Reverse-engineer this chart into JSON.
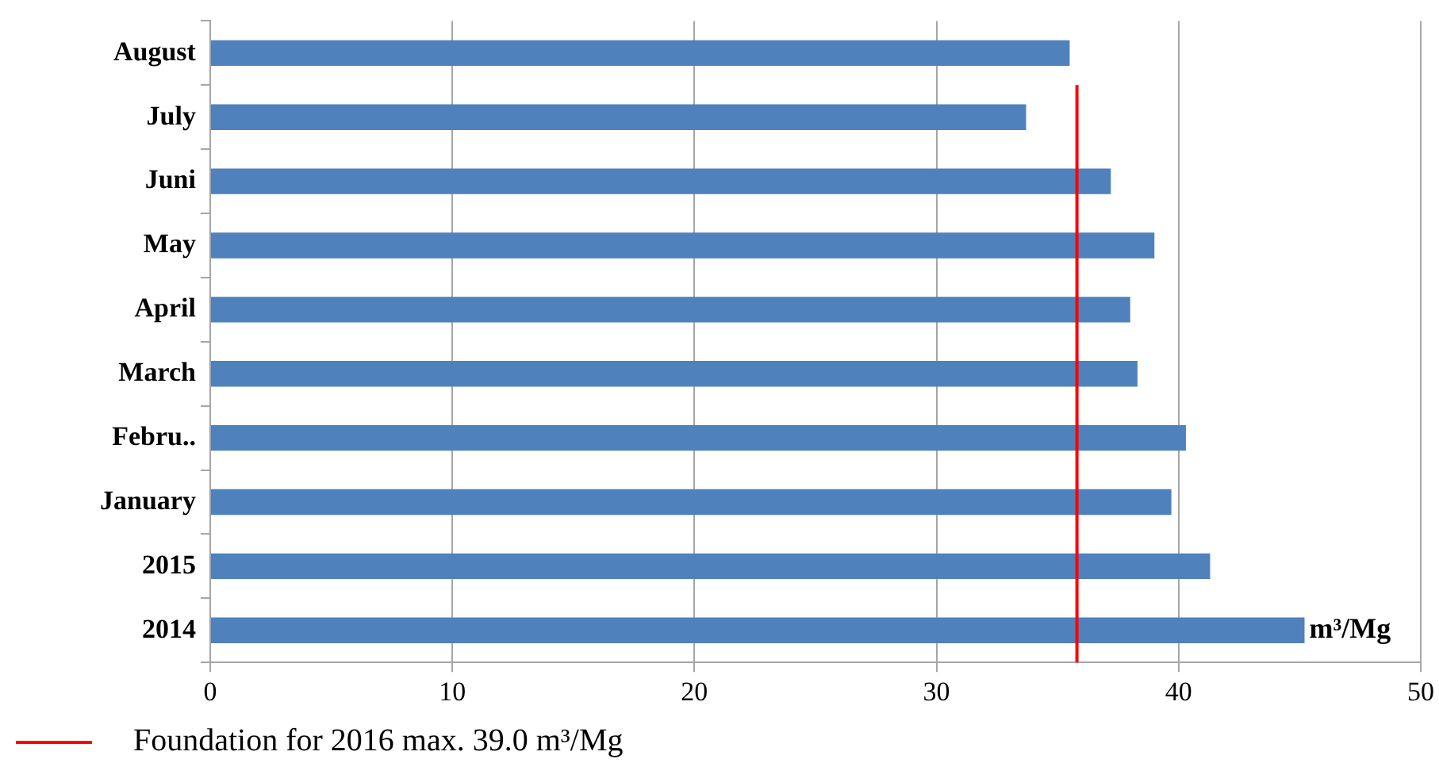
{
  "chart_data": {
    "type": "bar",
    "orientation": "horizontal",
    "categories": [
      "August",
      "July",
      "Juni",
      "May",
      "April",
      "March",
      "Febru..",
      "January",
      "2015",
      "2014"
    ],
    "values": [
      35.5,
      33.7,
      37.2,
      39.0,
      38.0,
      38.3,
      40.3,
      39.7,
      41.3,
      45.2
    ],
    "color": "#4f81bd",
    "xlim": [
      0,
      50
    ],
    "xticks": [
      0,
      10,
      20,
      30,
      40,
      50
    ],
    "grid": "x",
    "ref_lines": [
      {
        "axis": "x",
        "value": 35.8,
        "label": "Foundation for 2016 max. 39.0 m³/Mg",
        "color": "#ff0000"
      }
    ],
    "annotations": [
      {
        "text": "m³/Mg",
        "x": 45.2,
        "y": "2014"
      }
    ]
  }
}
